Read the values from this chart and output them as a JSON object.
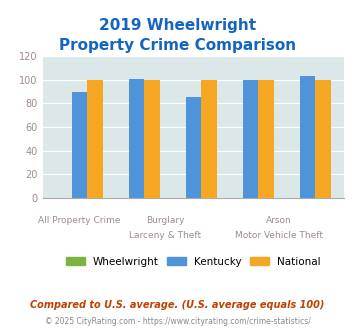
{
  "title_line1": "2019 Wheelwright",
  "title_line2": "Property Crime Comparison",
  "cat_top": [
    "",
    "Burglary",
    "",
    "Arson",
    ""
  ],
  "cat_bottom": [
    "All Property Crime",
    "Larceny & Theft",
    "",
    "Motor Vehicle Theft",
    ""
  ],
  "group_labels": [
    [
      "",
      "All Property Crime"
    ],
    [
      "Burglary",
      "Larceny & Theft"
    ],
    [
      "",
      ""
    ],
    [
      "Arson",
      "Motor Vehicle Theft"
    ],
    [
      "",
      ""
    ]
  ],
  "wheelwright": [
    0,
    0,
    0,
    0,
    0
  ],
  "kentucky": [
    90,
    101,
    85,
    100,
    103
  ],
  "national": [
    100,
    100,
    100,
    100,
    100
  ],
  "color_wheelwright": "#7cb342",
  "color_kentucky": "#4f93d8",
  "color_national": "#f5a623",
  "color_title": "#1565c0",
  "color_axis_text": "#9e8b8b",
  "color_bg": "#dce8e8",
  "ylim": [
    0,
    120
  ],
  "yticks": [
    0,
    20,
    40,
    60,
    80,
    100,
    120
  ],
  "footnote1": "Compared to U.S. average. (U.S. average equals 100)",
  "footnote2": "© 2025 CityRating.com - https://www.cityrating.com/crime-statistics/",
  "legend_labels": [
    "Wheelwright",
    "Kentucky",
    "National"
  ]
}
